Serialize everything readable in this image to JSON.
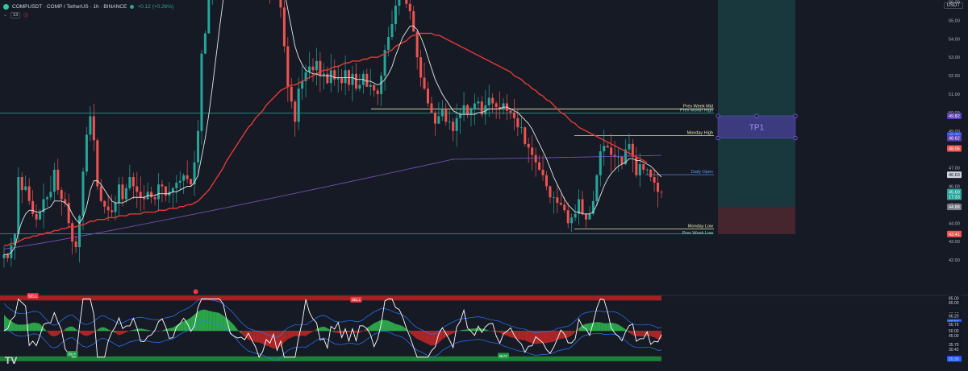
{
  "header": {
    "symbol": "COMPUSDT · COMP / TetherUS · 1h · BINANCE",
    "change": "+0.12 (+0.26%)",
    "indicator_count": "13",
    "currency": "USDT",
    "logo": "TV"
  },
  "colors": {
    "bg": "#161a25",
    "up": "#26a69a",
    "down": "#ef5350",
    "ma_white": "#e6e6e6",
    "ma_red": "#e53935",
    "ma_purple": "#7e57c2",
    "level": "#d9d97a",
    "teal_line": "#26a69a",
    "tp_box": "#5b3fb5"
  },
  "chart_data": {
    "type": "line",
    "title": "",
    "xlabel": "",
    "ylabel": "",
    "ylim": [
      41,
      62.6
    ],
    "price_ticks": [
      42.0,
      43.0,
      44.0,
      45.0,
      46.0,
      47.0,
      48.0,
      49.0,
      50.0,
      51.0,
      52.0,
      53.0,
      54.0,
      55.0,
      56.0,
      57.0,
      58.0,
      59.0,
      60.0,
      61.0,
      62.0
    ],
    "series": [
      {
        "name": "",
        "role": "close",
        "values": [
          42.3,
          42.1,
          42.8,
          43.4,
          46.5,
          45.8,
          46.0,
          45.2,
          44.5,
          44.2,
          44.6,
          45.3,
          45.4,
          45.7,
          46.9,
          45.8,
          45.3,
          45.1,
          44.0,
          43.0,
          42.7,
          44.4,
          46.8,
          48.8,
          49.8,
          48.5,
          46.0,
          45.2,
          44.9,
          44.7,
          44.6,
          45.1,
          46.1,
          45.3,
          45.9,
          46.5,
          46.0,
          45.7,
          45.4,
          45.3,
          45.7,
          45.4,
          45.3,
          46.1,
          46.0,
          45.5,
          45.7,
          45.9,
          46.2,
          46.3,
          46.6,
          46.4,
          46.1,
          47.3,
          49.0,
          53.2,
          54.3,
          56.6,
          58.9,
          60.4,
          61.3,
          61.8,
          61.7,
          61.0,
          60.9,
          60.6,
          60.3,
          60.4,
          60.9,
          59.8,
          58.9,
          57.5,
          57.5,
          58.0,
          56.7,
          57.7,
          56.6,
          55.7,
          53.6,
          51.4,
          50.6,
          49.5,
          51.3,
          51.7,
          52.2,
          52.5,
          52.3,
          52.8,
          52.0,
          52.1,
          51.6,
          52.3,
          51.8,
          51.9,
          51.6,
          52.3,
          51.5,
          52.1,
          51.3,
          51.5,
          52.1,
          51.4,
          51.5,
          51.2,
          51.0,
          52.0,
          53.4,
          54.1,
          54.8,
          55.8,
          56.5,
          56.3,
          55.9,
          55.5,
          54.4,
          53.0,
          51.9,
          51.3,
          50.5,
          50.0,
          49.4,
          49.8,
          50.2,
          49.5,
          49.5,
          49.0,
          49.7,
          49.9,
          50.4,
          49.9,
          50.2,
          50.5,
          50.6,
          49.9,
          50.4,
          50.8,
          50.5,
          50.3,
          50.2,
          50.5,
          50.1,
          50.0,
          49.7,
          49.2,
          49.2,
          48.3,
          48.1,
          47.7,
          47.3,
          46.9,
          46.6,
          46.0,
          45.4,
          45.4,
          45.1,
          45.0,
          44.7,
          44.0,
          44.3,
          44.5,
          45.3,
          44.5,
          44.2,
          44.5,
          45.2,
          46.6,
          47.9,
          48.2,
          48.1,
          47.7,
          47.6,
          47.6,
          47.2,
          48.0,
          48.3,
          47.6,
          46.6,
          47.2,
          46.9,
          46.9,
          46.5,
          46.2,
          45.7,
          45.69
        ]
      },
      {
        "name": "",
        "role": "ma_white",
        "values": [
          42.3,
          42.3,
          42.4,
          42.7,
          43.5,
          44.1,
          44.5,
          44.7,
          44.7,
          44.6,
          44.6,
          44.7,
          44.8,
          44.9,
          45.2,
          45.2,
          45.2,
          45.1,
          44.9,
          44.5,
          44.2,
          44.0,
          44.3,
          44.9,
          45.8,
          46.3,
          46.3,
          46.1,
          45.8,
          45.5,
          45.2,
          45.1,
          45.1,
          45.1,
          45.2,
          45.3,
          45.4,
          45.4,
          45.4,
          45.4,
          45.5,
          45.5,
          45.5,
          45.6,
          45.6,
          45.6,
          45.6,
          45.7,
          45.7,
          45.8,
          45.9,
          46.0,
          46.0,
          46.2,
          46.6,
          47.6,
          48.6,
          49.9,
          51.4,
          53.0,
          54.6,
          56.1,
          57.3,
          58.2,
          58.9,
          59.4,
          59.8,
          60.0,
          60.3,
          60.3,
          60.1,
          59.7,
          59.2,
          58.9,
          58.4,
          58.2,
          57.8,
          57.3,
          56.6,
          55.6,
          54.6,
          53.6,
          53.0,
          52.6,
          52.3,
          52.2,
          52.1,
          52.1,
          52.0,
          52.0,
          52.0,
          52.0,
          51.9,
          51.9,
          51.9,
          51.9,
          51.9,
          51.9,
          51.8,
          51.8,
          51.8,
          51.7,
          51.7,
          51.6,
          51.5,
          51.6,
          51.8,
          52.1,
          52.5,
          53.1,
          53.6,
          54.1,
          54.4,
          54.7,
          54.7,
          54.5,
          54.1,
          53.6,
          53.0,
          52.4,
          51.8,
          51.4,
          51.0,
          50.7,
          50.4,
          50.1,
          50.0,
          49.9,
          49.9,
          49.9,
          49.9,
          49.9,
          50.0,
          50.0,
          50.1,
          50.2,
          50.2,
          50.2,
          50.2,
          50.3,
          50.3,
          50.2,
          50.1,
          50.0,
          49.8,
          49.6,
          49.4,
          49.1,
          48.7,
          48.3,
          47.9,
          47.5,
          47.0,
          46.5,
          46.1,
          45.7,
          45.3,
          45.0,
          44.8,
          44.6,
          44.6,
          44.5,
          44.5,
          44.5,
          44.6,
          45.0,
          45.5,
          46.0,
          46.4,
          46.7,
          46.9,
          47.1,
          47.2,
          47.3,
          47.5,
          47.5,
          47.4,
          47.4,
          47.3,
          47.2,
          47.1,
          46.9,
          46.7,
          46.5
        ]
      },
      {
        "name": "",
        "role": "ma_red",
        "values": [
          42.8,
          42.8,
          42.9,
          42.9,
          43.0,
          43.1,
          43.2,
          43.2,
          43.3,
          43.3,
          43.4,
          43.4,
          43.5,
          43.5,
          43.6,
          43.6,
          43.7,
          43.7,
          43.8,
          43.8,
          43.8,
          43.9,
          43.9,
          44.0,
          44.1,
          44.1,
          44.2,
          44.2,
          44.2,
          44.3,
          44.3,
          44.3,
          44.4,
          44.4,
          44.4,
          44.5,
          44.5,
          44.5,
          44.5,
          44.6,
          44.6,
          44.6,
          44.6,
          44.7,
          44.7,
          44.7,
          44.8,
          44.8,
          44.8,
          44.9,
          44.9,
          45.0,
          45.0,
          45.1,
          45.2,
          45.4,
          45.6,
          45.8,
          46.1,
          46.4,
          46.7,
          47.0,
          47.4,
          47.7,
          48.0,
          48.3,
          48.6,
          48.9,
          49.2,
          49.4,
          49.7,
          49.9,
          50.1,
          50.4,
          50.6,
          50.8,
          51.0,
          51.2,
          51.3,
          51.4,
          51.5,
          51.5,
          51.6,
          51.7,
          51.8,
          51.9,
          52.0,
          52.1,
          52.2,
          52.3,
          52.3,
          52.4,
          52.5,
          52.5,
          52.6,
          52.7,
          52.7,
          52.8,
          52.8,
          52.8,
          52.9,
          52.9,
          53.0,
          53.0,
          53.0,
          53.1,
          53.2,
          53.3,
          53.4,
          53.6,
          53.7,
          53.8,
          53.9,
          54.1,
          54.2,
          54.2,
          54.3,
          54.3,
          54.3,
          54.3,
          54.2,
          54.2,
          54.1,
          54.0,
          53.9,
          53.8,
          53.7,
          53.6,
          53.5,
          53.4,
          53.3,
          53.2,
          53.1,
          53.0,
          52.9,
          52.8,
          52.7,
          52.6,
          52.5,
          52.4,
          52.3,
          52.2,
          52.0,
          51.9,
          51.8,
          51.6,
          51.5,
          51.3,
          51.2,
          51.0,
          50.9,
          50.7,
          50.6,
          50.4,
          50.2,
          50.0,
          49.9,
          49.7,
          49.5,
          49.4,
          49.2,
          49.1,
          49.0,
          48.9,
          48.8,
          48.7,
          48.6,
          48.5,
          48.4,
          48.3,
          48.2,
          48.1,
          48.0,
          47.9,
          47.8,
          47.7,
          47.6,
          47.5,
          47.4,
          47.3
        ]
      }
    ],
    "levels": [
      {
        "label": "Prev Week High",
        "value": 57.16
      },
      {
        "label": "Prev Week Mid",
        "value": 50.2
      },
      {
        "label": "Prev Month High",
        "value": 49.98
      },
      {
        "label": "Monday High",
        "value": 48.75
      },
      {
        "label": "Daily Open",
        "value": 46.63
      },
      {
        "label": "Monday Low",
        "value": 43.69
      },
      {
        "label": "Prev Week Low",
        "value": 43.43
      }
    ],
    "position_box": {
      "label": "TP1",
      "target": 57.16,
      "entry": 44.88,
      "stop": 43.41,
      "tp_zone": [
        48.62,
        49.82
      ]
    },
    "price_tags": [
      {
        "text": "57.16",
        "value": 57.16,
        "color": "#26a69a"
      },
      {
        "text": "49.82",
        "value": 49.82,
        "color": "#5b3fb5"
      },
      {
        "text": "48.75",
        "value": 48.75,
        "color": "#2962ff"
      },
      {
        "text": "48.62",
        "value": 48.62,
        "color": "#5b3fb5"
      },
      {
        "text": "48.05",
        "value": 48.05,
        "color": "#ef5350"
      },
      {
        "text": "46.63",
        "value": 46.63,
        "color": "#d1d4dc"
      },
      {
        "text": "45.69",
        "value": 45.69,
        "color": "#26a69a"
      },
      {
        "text": "17:33",
        "value": 45.43,
        "color": "#26a69a"
      },
      {
        "text": "44.88",
        "value": 44.88,
        "color": "#787b86"
      },
      {
        "text": "43.41",
        "value": 43.41,
        "color": "#ef5350"
      }
    ],
    "oscillator": {
      "ticks": [
        85.0,
        80.0,
        68.17,
        66.2,
        59.51,
        56.79,
        50.0,
        45.0,
        37.0,
        35.7,
        30.42,
        20.3
      ],
      "tags": [
        {
          "text": "85.00",
          "value": 85.0,
          "color": "#131722"
        },
        {
          "text": "80.00",
          "value": 80.0,
          "color": "#131722"
        },
        {
          "text": "68.17",
          "value": 68.17,
          "color": "#131722"
        },
        {
          "text": "66.20",
          "value": 66.2,
          "color": "#131722"
        },
        {
          "text": "59.51",
          "value": 59.51,
          "color": "#2962ff"
        },
        {
          "text": "56.79",
          "value": 56.79,
          "color": "#131722"
        },
        {
          "text": "50.00",
          "value": 50.0,
          "color": "#131722"
        },
        {
          "text": "45.00",
          "value": 45.0,
          "color": "#131722"
        },
        {
          "text": "37.00",
          "value": 37.0,
          "color": "#131722"
        },
        {
          "text": "35.70",
          "value": 35.7,
          "color": "#131722"
        },
        {
          "text": "30.42",
          "value": 30.42,
          "color": "#131722"
        },
        {
          "text": "20.30",
          "value": 20.3,
          "color": "#2962ff"
        }
      ],
      "signals": [
        {
          "label": "SELL",
          "index": 8,
          "value": 80,
          "kind": "sell"
        },
        {
          "label": "BUY",
          "index": 19,
          "value": 32,
          "kind": "buy"
        },
        {
          "label": "SELL",
          "index": 98,
          "value": 76,
          "kind": "sell"
        },
        {
          "label": "BUY",
          "index": 139,
          "value": 30,
          "kind": "buy"
        }
      ]
    }
  }
}
